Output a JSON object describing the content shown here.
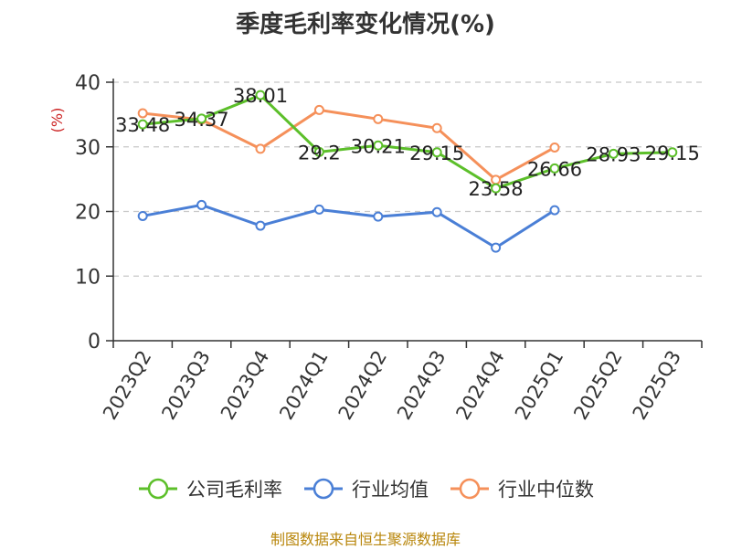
{
  "title": "季度毛利率变化情况(%)",
  "footer": "制图数据来自恒生聚源数据库",
  "chart_data": {
    "type": "line",
    "ylabel": "(%)",
    "ylim": [
      0,
      40
    ],
    "yticks": [
      0,
      10,
      20,
      30,
      40
    ],
    "grid": true,
    "legend_position": "bottom",
    "categories": [
      "2023Q2",
      "2023Q3",
      "2023Q4",
      "2024Q1",
      "2024Q2",
      "2024Q3",
      "2024Q4",
      "2025Q1",
      "2025Q2",
      "2025Q3"
    ],
    "series": [
      {
        "name": "公司毛利率",
        "color": "#5cbf2a",
        "values": [
          33.48,
          34.37,
          38.01,
          29.2,
          30.21,
          29.15,
          23.58,
          26.66,
          28.93,
          29.15
        ],
        "labels": [
          "33.48",
          "34.37",
          "38.01",
          "29.2",
          "30.21",
          "29.15",
          "23.58",
          "26.66",
          "28.93",
          "29.15"
        ]
      },
      {
        "name": "行业均值",
        "color": "#4a7fd6",
        "values": [
          19.3,
          21.0,
          17.8,
          20.3,
          19.2,
          19.9,
          14.4,
          20.2,
          null,
          null
        ]
      },
      {
        "name": "行业中位数",
        "color": "#f5905a",
        "values": [
          35.2,
          34.2,
          29.7,
          35.7,
          34.3,
          32.9,
          24.9,
          29.9,
          null,
          null
        ]
      }
    ]
  }
}
